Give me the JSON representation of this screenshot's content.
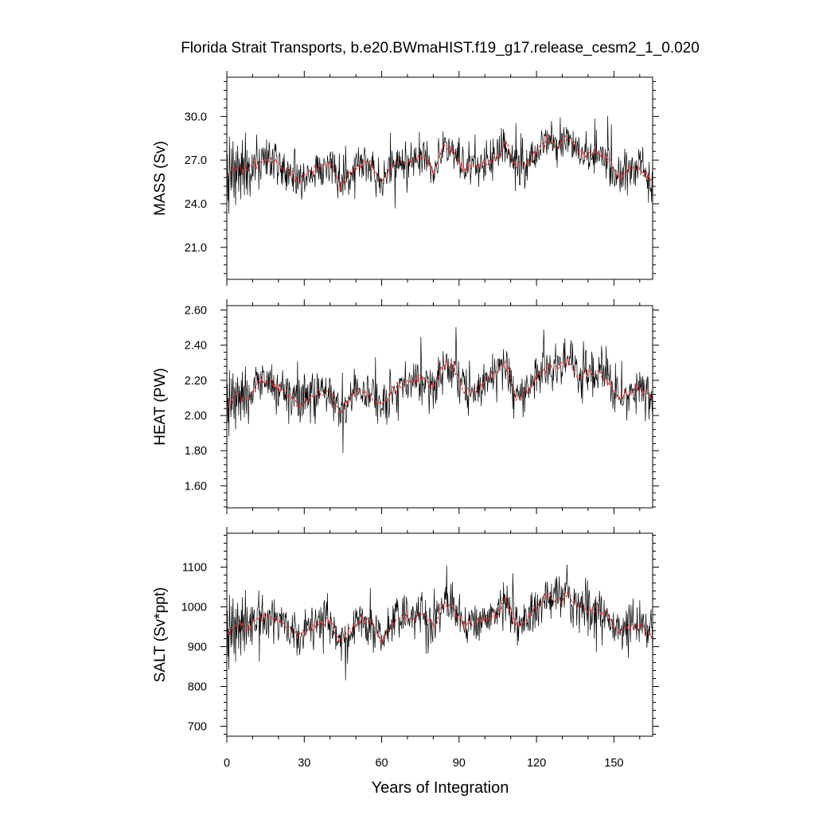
{
  "chart_data": {
    "type": "line",
    "title": "Florida Strait Transports, b.e20.BWmaHIST.f19_g17.release_cesm2_1_0.020",
    "xlabel": "Years of Integration",
    "xlim": [
      0,
      165
    ],
    "xticks": [
      "0",
      "30",
      "60",
      "90",
      "120",
      "150"
    ],
    "series_colors": {
      "raw": "#000000",
      "smoothed": "#e03030"
    },
    "grid": false,
    "legend": "none",
    "panels": [
      {
        "key": "mass",
        "ylabel": "MASS (Sv)",
        "ylim": [
          18.8,
          32.7
        ],
        "yticks": [
          "21.0",
          "24.0",
          "27.0",
          "30.0"
        ],
        "smoothed": {
          "x": [
            0,
            4,
            8,
            12,
            16,
            20,
            24,
            28,
            32,
            36,
            40,
            44,
            48,
            52,
            56,
            60,
            64,
            68,
            72,
            76,
            80,
            84,
            88,
            92,
            96,
            100,
            104,
            108,
            112,
            116,
            120,
            124,
            128,
            132,
            136,
            140,
            144,
            148,
            152,
            156,
            160,
            165
          ],
          "y": [
            25.9,
            26.5,
            26.3,
            26.9,
            27.1,
            26.8,
            26.2,
            25.6,
            26.3,
            26.5,
            26.9,
            25.2,
            26.2,
            26.8,
            26.6,
            25.4,
            26.7,
            27.0,
            26.9,
            27.3,
            26.3,
            28.0,
            27.5,
            26.4,
            26.5,
            26.8,
            27.0,
            28.2,
            26.4,
            26.8,
            27.6,
            28.5,
            28.0,
            28.6,
            27.7,
            27.4,
            27.5,
            27.0,
            25.9,
            26.3,
            26.4,
            25.6
          ]
        },
        "raw_sample_every_0_2_years": [
          25.2,
          27.4,
          24.2,
          26.1,
          23.3,
          28.6,
          26.4,
          26.0,
          24.9,
          27.8,
          25.1,
          26.4,
          28.3,
          25.6,
          24.4,
          27.0,
          26.7,
          23.9,
          27.6,
          25.5,
          26.2,
          28.0,
          26.4,
          24.8,
          27.1,
          25.9,
          26.8,
          24.3,
          27.5,
          26.0,
          28.4,
          25.3,
          26.9,
          27.2,
          24.6,
          26.3,
          28.9,
          26.1,
          25.0,
          27.7
        ]
      },
      {
        "key": "heat",
        "ylabel": "HEAT (PW)",
        "ylim": [
          1.475,
          2.625
        ],
        "yticks": [
          "1.60",
          "1.80",
          "2.00",
          "2.20",
          "2.40",
          "2.60"
        ],
        "smoothed": {
          "x": [
            0,
            4,
            8,
            12,
            16,
            20,
            24,
            28,
            32,
            36,
            40,
            44,
            48,
            52,
            56,
            60,
            64,
            68,
            72,
            76,
            80,
            84,
            88,
            92,
            96,
            100,
            104,
            108,
            112,
            116,
            120,
            124,
            128,
            132,
            136,
            140,
            144,
            148,
            152,
            156,
            160,
            165
          ],
          "y": [
            2.05,
            2.12,
            2.08,
            2.19,
            2.2,
            2.15,
            2.12,
            2.07,
            2.1,
            2.13,
            2.13,
            2.02,
            2.09,
            2.15,
            2.1,
            2.05,
            2.14,
            2.18,
            2.2,
            2.21,
            2.16,
            2.3,
            2.28,
            2.14,
            2.15,
            2.2,
            2.24,
            2.3,
            2.1,
            2.14,
            2.22,
            2.28,
            2.27,
            2.31,
            2.23,
            2.24,
            2.24,
            2.19,
            2.1,
            2.12,
            2.16,
            2.1
          ]
        },
        "raw_sample_every_0_2_years": [
          2.02,
          2.18,
          1.96,
          2.1,
          1.88,
          2.26,
          2.08,
          2.05,
          1.99,
          2.21,
          2.03,
          2.11,
          2.24,
          2.06,
          1.98,
          2.16,
          2.13,
          1.92,
          2.19,
          2.05,
          2.09,
          2.22,
          2.12,
          2.0,
          2.17,
          2.07,
          2.14,
          1.97,
          2.2,
          2.08,
          2.25,
          2.03,
          2.15,
          2.17,
          1.99,
          2.11,
          2.28,
          2.09,
          2.01,
          2.2
        ]
      },
      {
        "key": "salt",
        "ylabel": "SALT (Sv*ppt)",
        "ylim": [
          675,
          1185
        ],
        "yticks": [
          "700",
          "800",
          "900",
          "1000",
          "1100"
        ],
        "smoothed": {
          "x": [
            0,
            4,
            8,
            12,
            16,
            20,
            24,
            28,
            32,
            36,
            40,
            44,
            48,
            52,
            56,
            60,
            64,
            68,
            72,
            76,
            80,
            84,
            88,
            92,
            96,
            100,
            104,
            108,
            112,
            116,
            120,
            124,
            128,
            132,
            136,
            140,
            144,
            148,
            152,
            156,
            160,
            165
          ],
          "y": [
            930,
            955,
            945,
            970,
            978,
            965,
            945,
            925,
            950,
            958,
            972,
            905,
            945,
            968,
            960,
            915,
            962,
            975,
            972,
            985,
            950,
            1012,
            995,
            955,
            958,
            970,
            978,
            1020,
            955,
            968,
            998,
            1028,
            1012,
            1035,
            1002,
            992,
            995,
            978,
            935,
            950,
            955,
            925
          ]
        },
        "raw_sample_every_0_2_years": [
          910,
          990,
          875,
          945,
          842,
          1030,
          952,
          938,
          898,
          1002,
          905,
          952,
          1022,
          925,
          882,
          975,
          965,
          862,
          995,
          920,
          945,
          1010,
          952,
          895,
          978,
          935,
          968,
          878,
          992,
          940,
          1025,
          915,
          970,
          982,
          888,
          950,
          1042,
          942,
          905,
          1000
        ]
      }
    ]
  }
}
